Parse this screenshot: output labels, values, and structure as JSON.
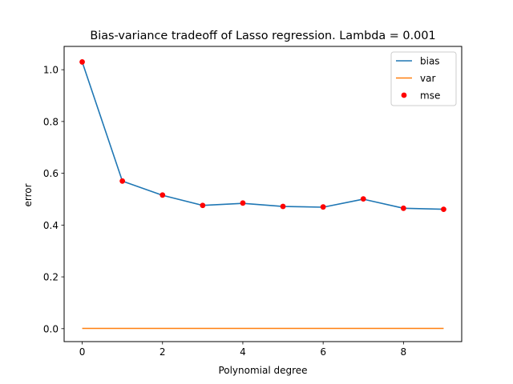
{
  "chart_data": {
    "type": "line",
    "title": "Bias-variance tradeoff of Lasso regression. Lambda = 0.001",
    "xlabel": "Polynomial degree",
    "ylabel": "error",
    "xlim": [
      -0.45,
      9.45
    ],
    "ylim": [
      -0.05,
      1.09
    ],
    "xticks": [
      0,
      2,
      4,
      6,
      8
    ],
    "xtick_labels": [
      "0",
      "2",
      "4",
      "6",
      "8"
    ],
    "yticks": [
      0.0,
      0.2,
      0.4,
      0.6,
      0.8,
      1.0
    ],
    "ytick_labels": [
      "0.0",
      "0.2",
      "0.4",
      "0.6",
      "0.8",
      "1.0"
    ],
    "grid": false,
    "legend_position": "top-right",
    "x": [
      0,
      1,
      2,
      3,
      4,
      5,
      6,
      7,
      8,
      9
    ],
    "series": [
      {
        "name": "bias",
        "kind": "line",
        "color": "#1f77b4",
        "values": [
          1.03,
          0.57,
          0.515,
          0.476,
          0.484,
          0.472,
          0.469,
          0.5,
          0.465,
          0.461
        ]
      },
      {
        "name": "var",
        "kind": "line",
        "color": "#ff7f0e",
        "values": [
          0.001,
          0.001,
          0.001,
          0.001,
          0.001,
          0.001,
          0.001,
          0.001,
          0.001,
          0.001
        ]
      },
      {
        "name": "mse",
        "kind": "scatter",
        "color": "#ff0000",
        "values": [
          1.03,
          0.57,
          0.516,
          0.476,
          0.485,
          0.472,
          0.47,
          0.501,
          0.465,
          0.461
        ]
      }
    ]
  }
}
